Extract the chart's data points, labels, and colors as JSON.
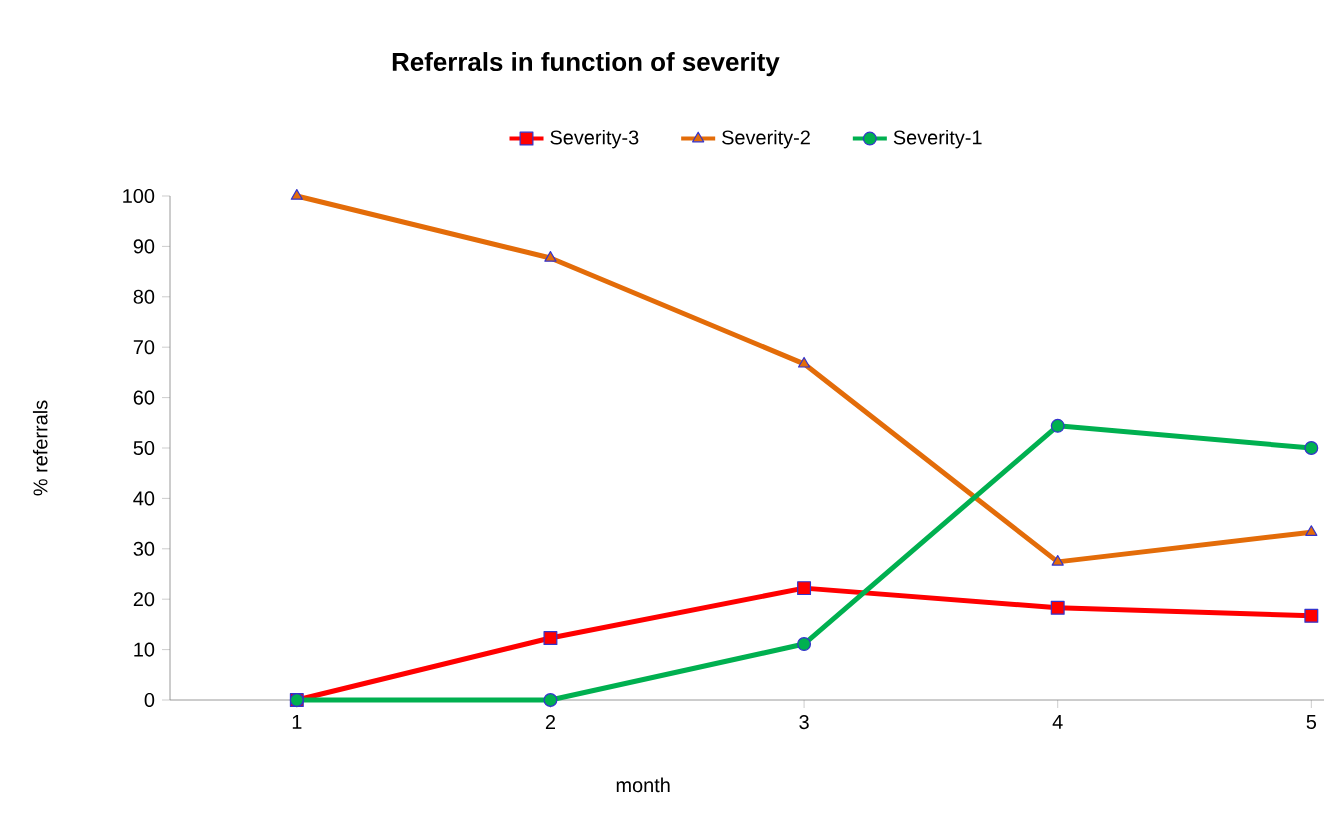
{
  "chart_data": {
    "type": "line",
    "title": "Referrals in function of severity",
    "xlabel": "month",
    "ylabel": "% referrals",
    "x": [
      1,
      2,
      3,
      4,
      5
    ],
    "xlim": [
      0.5,
      5.05
    ],
    "xticks": [
      1,
      2,
      3,
      4,
      5
    ],
    "ylim": [
      0,
      100
    ],
    "yticks": [
      0,
      10,
      20,
      30,
      40,
      50,
      60,
      70,
      80,
      90,
      100
    ],
    "grid": false,
    "legend": "top",
    "series": [
      {
        "name": "Severity-3",
        "color": "#ff0000",
        "marker": "square",
        "values": [
          0,
          12.3,
          22.2,
          18.3,
          16.7
        ]
      },
      {
        "name": "Severity-2",
        "color": "#e36c09",
        "marker": "triangle",
        "values": [
          100,
          87.7,
          66.7,
          27.4,
          33.3
        ]
      },
      {
        "name": "Severity-1",
        "color": "#00b050",
        "marker": "circle",
        "values": [
          0,
          0,
          11.1,
          54.4,
          50
        ]
      }
    ]
  }
}
